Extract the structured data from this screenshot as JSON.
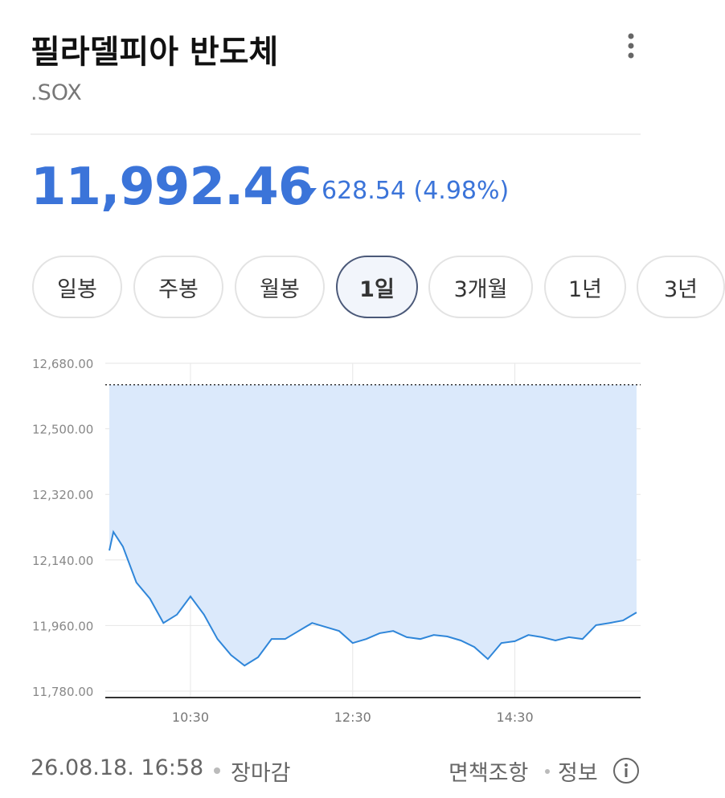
{
  "header": {
    "title": "필라델피아 반도체",
    "symbol": ".SOX"
  },
  "quote": {
    "price": "11,992.46",
    "change": "628.54 (4.98%)"
  },
  "tabs": [
    "일봉",
    "주봉",
    "월봉",
    "1일",
    "3개월",
    "1년",
    "3년"
  ],
  "chart_data": {
    "type": "line",
    "color": "#2f86d9",
    "fill": "#dbe9fb",
    "grid": true,
    "x": [
      570,
      573,
      580,
      590,
      600,
      610,
      620,
      630,
      640,
      650,
      660,
      670,
      680,
      690,
      700,
      710,
      720,
      730,
      740,
      750,
      760,
      770,
      780,
      790,
      800,
      810,
      820,
      830,
      840,
      850,
      860,
      870,
      880,
      890,
      900,
      910,
      920,
      930,
      940,
      950,
      960
    ],
    "values": [
      12166,
      12217,
      12177,
      12078,
      12034,
      11967,
      11990,
      12040,
      11990,
      11923,
      11879,
      11850,
      11873,
      11923,
      11923,
      11945,
      11967,
      11956,
      11945,
      11912,
      11923,
      11939,
      11945,
      11928,
      11923,
      11934,
      11930,
      11919,
      11901,
      11868,
      11912,
      11917,
      11934,
      11928,
      11919,
      11928,
      11923,
      11961,
      11967,
      11974,
      11996
    ],
    "reference_line": 12621,
    "xlim": [
      567,
      963
    ],
    "xticks": [
      {
        "value": 630,
        "label": "10:30"
      },
      {
        "value": 750,
        "label": "12:30"
      },
      {
        "value": 870,
        "label": "14:30"
      }
    ],
    "ylim": [
      11780,
      12680
    ],
    "yticks": [
      {
        "value": 11780,
        "label": "11,780.00"
      },
      {
        "value": 11960,
        "label": "11,960.00"
      },
      {
        "value": 12140,
        "label": "12,140.00"
      },
      {
        "value": 12320,
        "label": "12,320.00"
      },
      {
        "value": 12500,
        "label": "12,500.00"
      },
      {
        "value": 12680,
        "label": "12,680.00"
      }
    ]
  },
  "footer": {
    "datetime": "26.08.18. 16:58",
    "status": "장마감",
    "disclaimer": "면책조항",
    "info": "정보"
  }
}
